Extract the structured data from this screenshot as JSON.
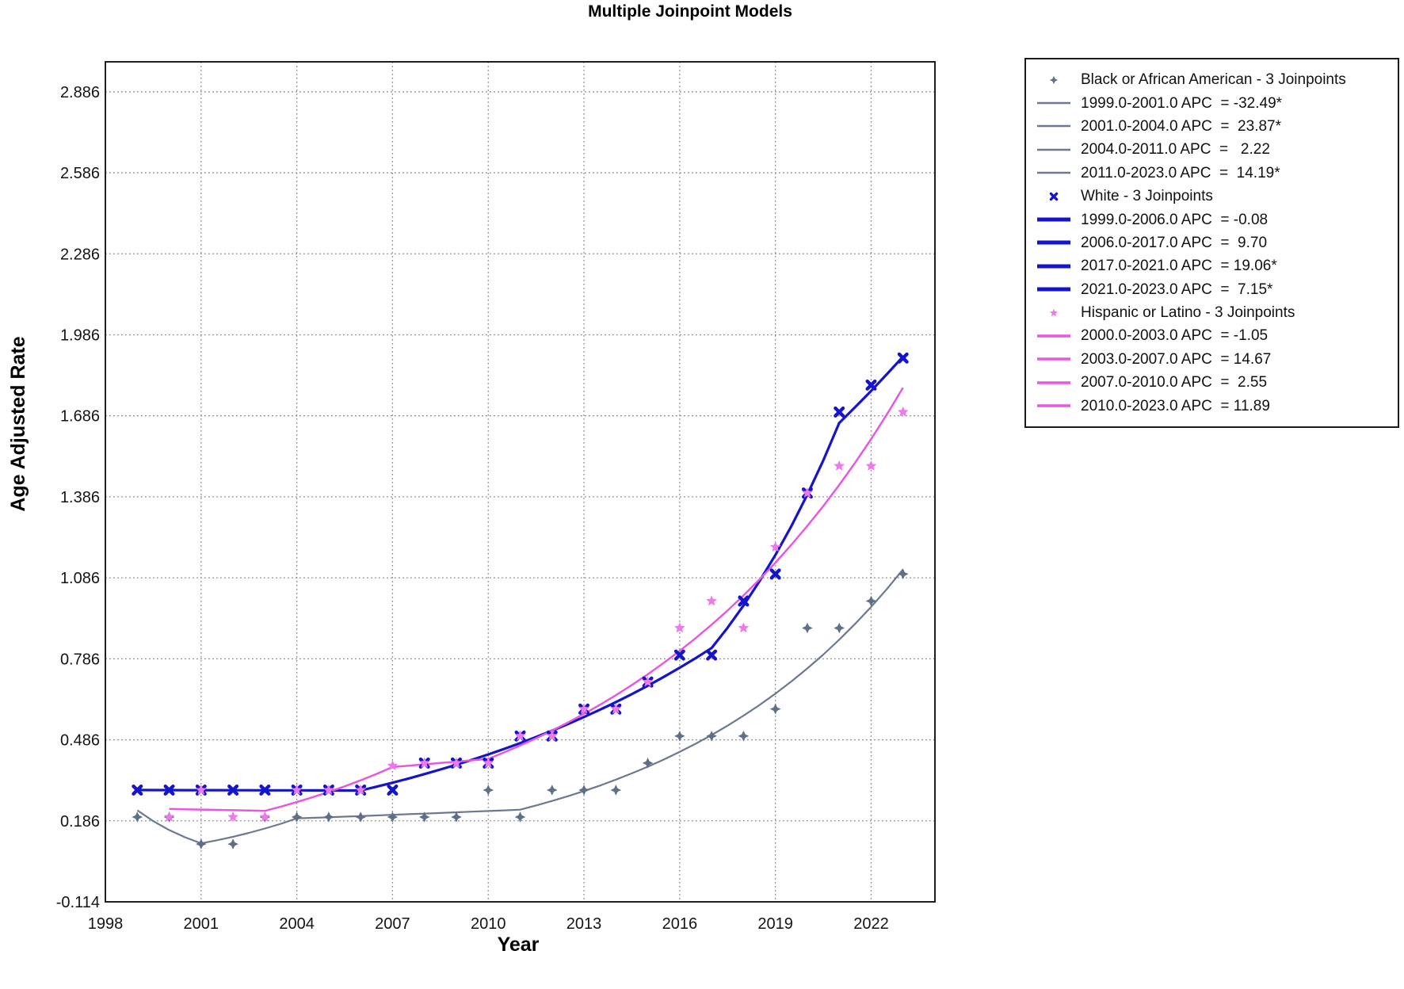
{
  "chart_data": {
    "type": "line",
    "title": "Multiple Joinpoint Models",
    "xlabel": "Year",
    "ylabel": "Age Adjusted Rate",
    "xlim": [
      1998,
      2024.0
    ],
    "ylim": [
      -0.114,
      2.997
    ],
    "x_ticks": [
      "1998",
      "2001",
      "2004",
      "2007",
      "2010",
      "2013",
      "2016",
      "2019",
      "2022"
    ],
    "y_ticks": [
      "2.886",
      "2.586",
      "2.286",
      "1.986",
      "1.686",
      "1.386",
      "1.086",
      "0.786",
      "0.486",
      "0.186",
      "-0.114"
    ],
    "grid": "dotted",
    "legend_position": "outside-right",
    "colors": {
      "grid": "#8a8a8a",
      "plot_border": "#1f1f1f",
      "tick_text": "#141414"
    },
    "series": [
      {
        "id": "black",
        "name": "Black or African American - 3 Joinpoints",
        "marker": "star4",
        "marker_color": "#5d7088",
        "line_color": "#6b7a90",
        "line_width": 2.2,
        "legend_line_width": 2.5,
        "observed": {
          "years": [
            1999,
            2000,
            2001,
            2002,
            2003,
            2004,
            2005,
            2006,
            2007,
            2008,
            2009,
            2010,
            2011,
            2012,
            2013,
            2014,
            2015,
            2016,
            2017,
            2018,
            2019,
            2020,
            2021,
            2022,
            2023
          ],
          "values": [
            0.2,
            0.2,
            0.1,
            0.1,
            0.2,
            0.2,
            0.2,
            0.2,
            0.2,
            0.2,
            0.2,
            0.3,
            0.2,
            0.3,
            0.3,
            0.3,
            0.4,
            0.5,
            0.5,
            0.5,
            0.6,
            0.9,
            0.9,
            1.0,
            1.1
          ]
        },
        "fit": {
          "start_year": 1999,
          "start_value": 0.225,
          "segments": [
            {
              "from": 1999,
              "to": 2001,
              "apc": -32.49,
              "label": "1999.0-2001.0 APC  = -32.49*"
            },
            {
              "from": 2001,
              "to": 2004,
              "apc": 23.87,
              "label": "2001.0-2004.0 APC  =  23.87*"
            },
            {
              "from": 2004,
              "to": 2011,
              "apc": 2.22,
              "label": "2004.0-2011.0 APC  =   2.22"
            },
            {
              "from": 2011,
              "to": 2023,
              "apc": 14.19,
              "label": "2011.0-2023.0 APC  =  14.19*"
            }
          ]
        }
      },
      {
        "id": "white",
        "name": "White - 3 Joinpoints",
        "marker": "xcross",
        "marker_color": "#1414cc",
        "line_color": "#1414cc",
        "line_width": 3.2,
        "legend_line_width": 5,
        "observed": {
          "years": [
            1999,
            2000,
            2001,
            2002,
            2003,
            2004,
            2005,
            2006,
            2007,
            2008,
            2009,
            2010,
            2011,
            2012,
            2013,
            2014,
            2015,
            2016,
            2017,
            2018,
            2019,
            2020,
            2021,
            2022,
            2023
          ],
          "values": [
            0.3,
            0.3,
            0.3,
            0.3,
            0.3,
            0.3,
            0.3,
            0.3,
            0.3,
            0.4,
            0.4,
            0.4,
            0.5,
            0.5,
            0.6,
            0.6,
            0.7,
            0.8,
            0.8,
            1.0,
            1.1,
            1.4,
            1.7,
            1.8,
            1.9
          ]
        },
        "fit": {
          "start_year": 1999,
          "start_value": 0.3,
          "segments": [
            {
              "from": 1999,
              "to": 2006,
              "apc": -0.08,
              "label": "1999.0-2006.0 APC  = -0.08"
            },
            {
              "from": 2006,
              "to": 2017,
              "apc": 9.7,
              "label": "2006.0-2017.0 APC  =  9.70"
            },
            {
              "from": 2017,
              "to": 2021,
              "apc": 19.06,
              "label": "2017.0-2021.0 APC  = 19.06*"
            },
            {
              "from": 2021,
              "to": 2023,
              "apc": 7.15,
              "label": "2021.0-2023.0 APC  =  7.15*"
            }
          ]
        }
      },
      {
        "id": "hispanic",
        "name": "Hispanic or Latino - 3 Joinpoints",
        "marker": "star5",
        "marker_color": "#ee7ae8",
        "line_color": "#e659df",
        "line_width": 2.5,
        "legend_line_width": 3.5,
        "observed": {
          "years": [
            2000,
            2001,
            2002,
            2003,
            2004,
            2005,
            2006,
            2007,
            2008,
            2009,
            2010,
            2011,
            2012,
            2013,
            2014,
            2015,
            2016,
            2017,
            2018,
            2019,
            2020,
            2021,
            2022,
            2023
          ],
          "values": [
            0.2,
            0.3,
            0.2,
            0.2,
            0.3,
            0.3,
            0.3,
            0.39,
            0.4,
            0.4,
            0.4,
            0.5,
            0.5,
            0.6,
            0.6,
            0.7,
            0.9,
            1.0,
            0.9,
            1.2,
            1.4,
            1.5,
            1.5,
            1.7
          ]
        },
        "fit": {
          "start_year": 2000,
          "start_value": 0.23,
          "segments": [
            {
              "from": 2000,
              "to": 2003,
              "apc": -1.05,
              "label": "2000.0-2003.0 APC  = -1.05"
            },
            {
              "from": 2003,
              "to": 2007,
              "apc": 14.67,
              "label": "2003.0-2007.0 APC  = 14.67"
            },
            {
              "from": 2007,
              "to": 2010,
              "apc": 2.55,
              "label": "2007.0-2010.0 APC  =  2.55"
            },
            {
              "from": 2010,
              "to": 2023,
              "apc": 11.89,
              "label": "2010.0-2023.0 APC  = 11.89"
            }
          ]
        }
      }
    ]
  }
}
